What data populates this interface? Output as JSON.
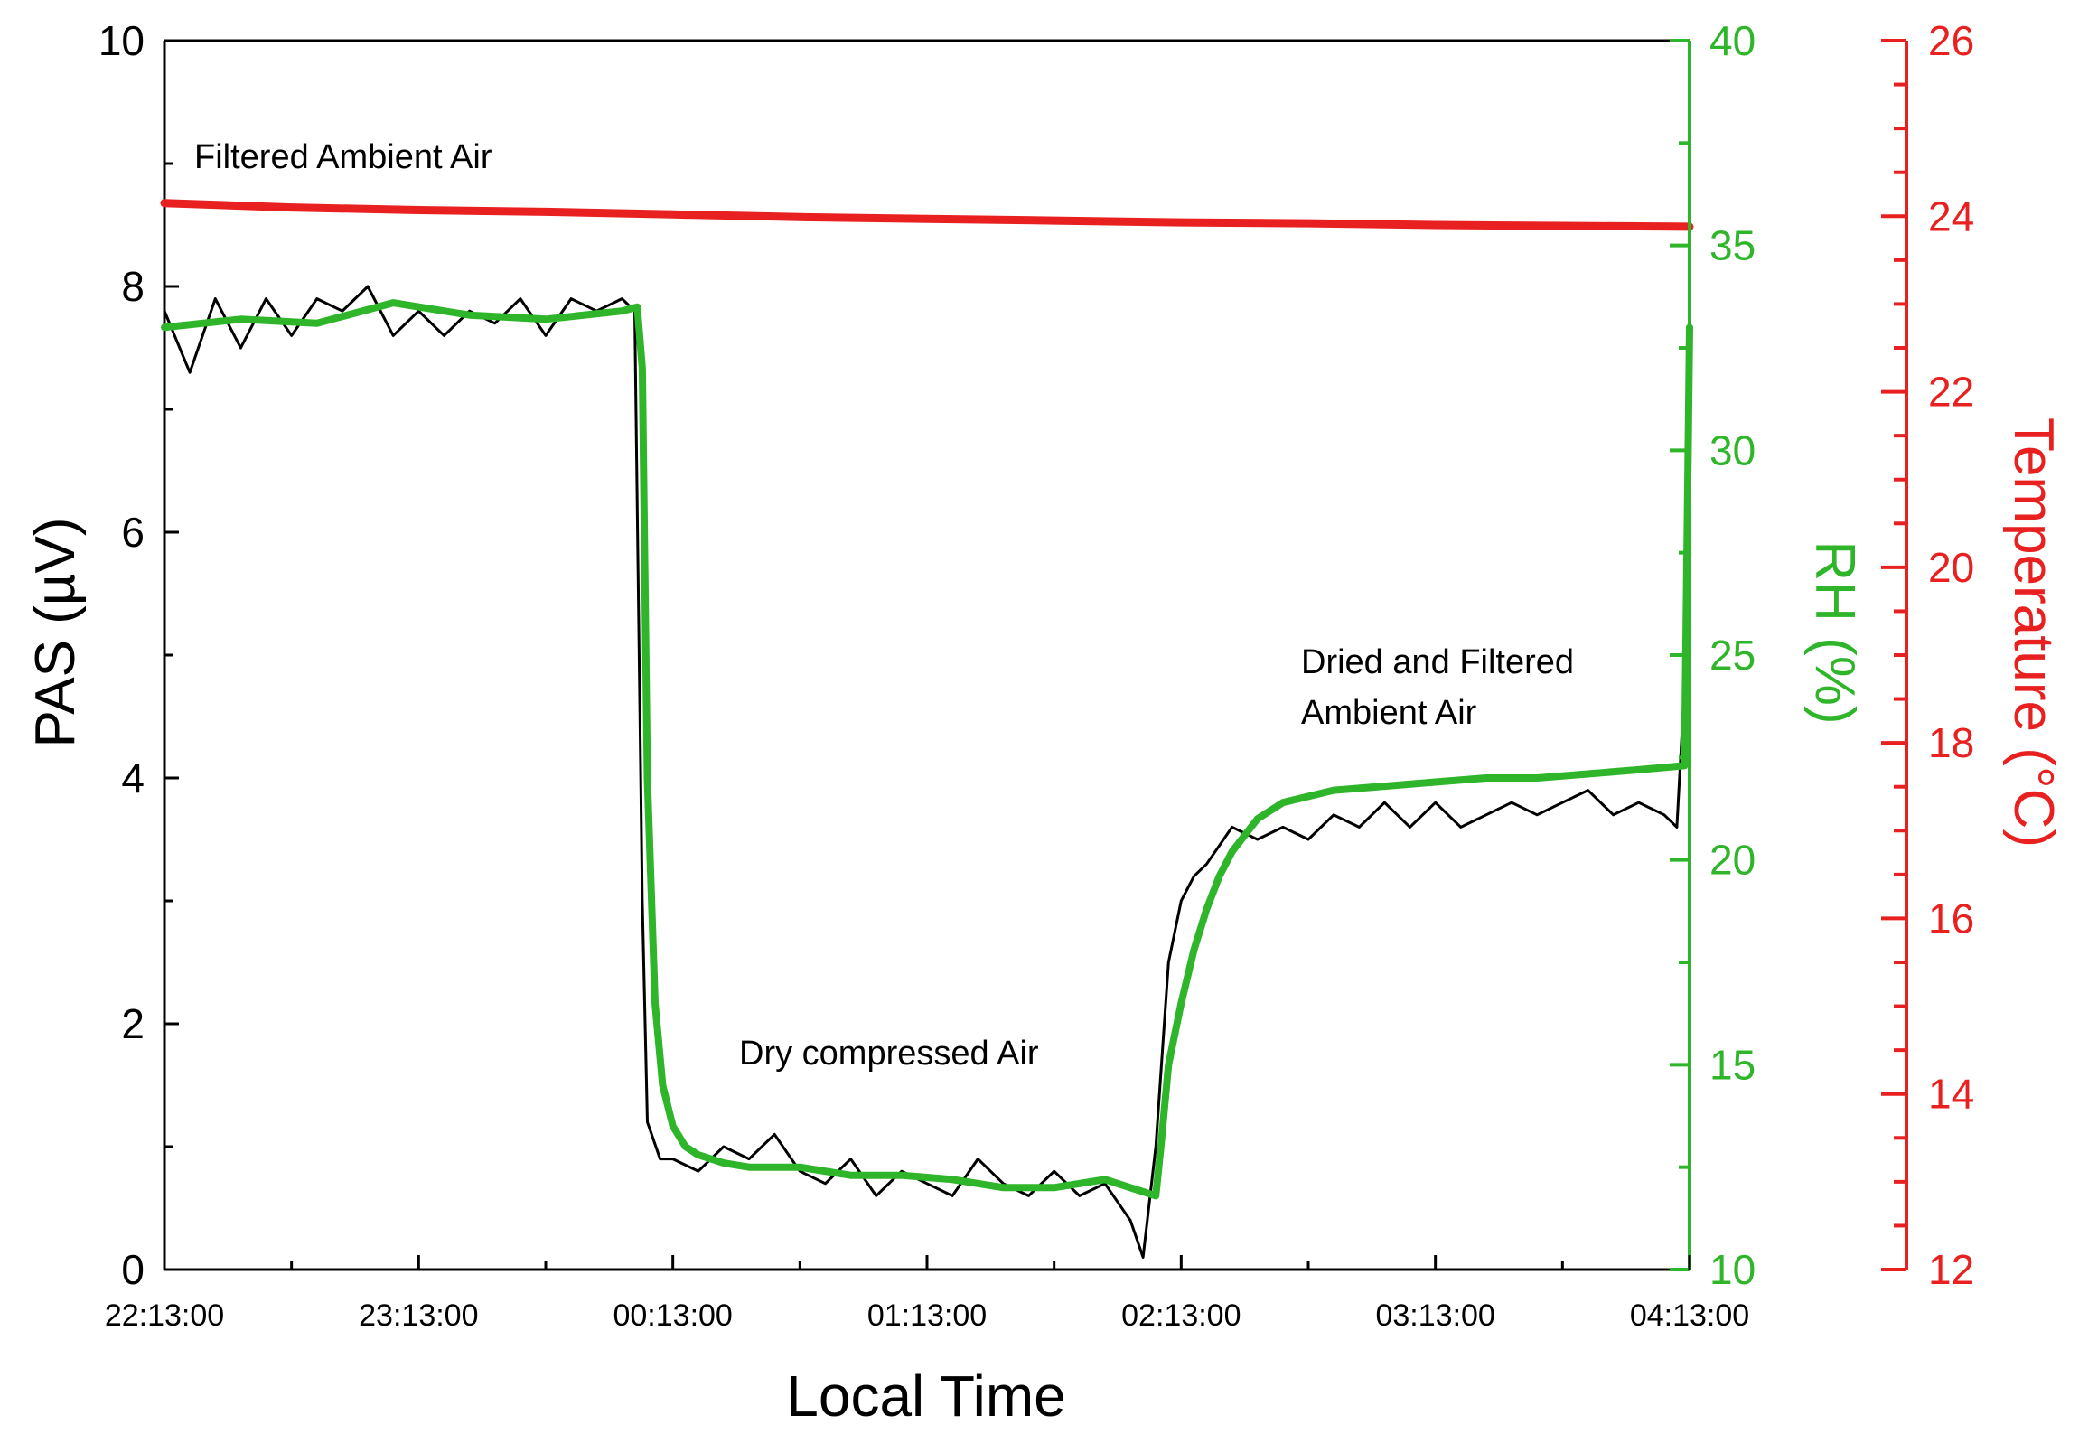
{
  "chart_data": {
    "type": "line",
    "xlabel": "Local Time",
    "x_ticks": [
      "22:13:00",
      "23:13:00",
      "00:13:00",
      "01:13:00",
      "02:13:00",
      "03:13:00",
      "04:13:00"
    ],
    "x_range_hours": [
      0,
      6
    ],
    "axes": {
      "left": {
        "label": "PAS (µV)",
        "range": [
          0,
          10
        ],
        "ticks": [
          "0",
          "2",
          "4",
          "6",
          "8",
          "10"
        ],
        "color": "#000000"
      },
      "right_rh": {
        "label": "RH (%)",
        "range": [
          10,
          40
        ],
        "ticks": [
          "10",
          "15",
          "20",
          "25",
          "30",
          "35",
          "40"
        ],
        "color": "#2fb52a"
      },
      "right_temp": {
        "label": "Temperature (°C)",
        "range": [
          12,
          26
        ],
        "ticks": [
          "12",
          "14",
          "16",
          "18",
          "20",
          "22",
          "24",
          "26"
        ],
        "color": "#e82020"
      }
    },
    "annotations": [
      "Filtered Ambient Air",
      "Dry compressed Air",
      "Dried and Filtered",
      "Ambient Air"
    ],
    "series": [
      {
        "axis": "left",
        "color": "#000000",
        "x_hours": [
          0.0,
          0.1,
          0.2,
          0.3,
          0.4,
          0.5,
          0.6,
          0.7,
          0.8,
          0.9,
          1.0,
          1.1,
          1.2,
          1.3,
          1.4,
          1.5,
          1.6,
          1.7,
          1.8,
          1.85,
          1.88,
          1.9,
          1.95,
          2.0,
          2.1,
          2.2,
          2.3,
          2.4,
          2.5,
          2.6,
          2.7,
          2.8,
          2.9,
          3.0,
          3.1,
          3.2,
          3.3,
          3.4,
          3.5,
          3.6,
          3.7,
          3.8,
          3.85,
          3.9,
          3.95,
          4.0,
          4.05,
          4.1,
          4.2,
          4.3,
          4.4,
          4.5,
          4.6,
          4.7,
          4.8,
          4.9,
          5.0,
          5.1,
          5.2,
          5.3,
          5.4,
          5.5,
          5.6,
          5.7,
          5.8,
          5.9,
          5.95,
          6.0
        ],
        "y": [
          7.8,
          7.3,
          7.9,
          7.5,
          7.9,
          7.6,
          7.9,
          7.8,
          8.0,
          7.6,
          7.8,
          7.6,
          7.8,
          7.7,
          7.9,
          7.6,
          7.9,
          7.8,
          7.9,
          7.8,
          3.0,
          1.2,
          0.9,
          0.9,
          0.8,
          1.0,
          0.9,
          1.1,
          0.8,
          0.7,
          0.9,
          0.6,
          0.8,
          0.7,
          0.6,
          0.9,
          0.7,
          0.6,
          0.8,
          0.6,
          0.7,
          0.4,
          0.1,
          1.0,
          2.5,
          3.0,
          3.2,
          3.3,
          3.6,
          3.5,
          3.6,
          3.5,
          3.7,
          3.6,
          3.8,
          3.6,
          3.8,
          3.6,
          3.7,
          3.8,
          3.7,
          3.8,
          3.9,
          3.7,
          3.8,
          3.7,
          3.6,
          5.5
        ]
      },
      {
        "axis": "right_rh",
        "color": "#2fb52a",
        "x_hours": [
          0.0,
          0.3,
          0.6,
          0.9,
          1.2,
          1.5,
          1.8,
          1.86,
          1.88,
          1.9,
          1.93,
          1.96,
          2.0,
          2.05,
          2.1,
          2.2,
          2.3,
          2.5,
          2.7,
          2.9,
          3.1,
          3.3,
          3.5,
          3.7,
          3.9,
          3.92,
          3.95,
          4.0,
          4.05,
          4.1,
          4.15,
          4.2,
          4.3,
          4.4,
          4.6,
          4.8,
          5.0,
          5.2,
          5.4,
          5.6,
          5.8,
          5.98,
          6.0
        ],
        "y": [
          33.0,
          33.2,
          33.1,
          33.6,
          33.3,
          33.2,
          33.4,
          33.5,
          32.0,
          22.0,
          16.5,
          14.5,
          13.5,
          13.0,
          12.8,
          12.6,
          12.5,
          12.5,
          12.3,
          12.3,
          12.2,
          12.0,
          12.0,
          12.2,
          11.8,
          13.0,
          15.0,
          16.5,
          17.8,
          18.8,
          19.6,
          20.2,
          21.0,
          21.4,
          21.7,
          21.8,
          21.9,
          22.0,
          22.0,
          22.1,
          22.2,
          22.3,
          33.0
        ]
      },
      {
        "axis": "right_temp",
        "color": "#e82020",
        "x_hours": [
          0.0,
          0.5,
          1.0,
          1.5,
          2.0,
          2.5,
          3.0,
          3.5,
          4.0,
          4.5,
          5.0,
          5.5,
          6.0
        ],
        "y": [
          24.15,
          24.1,
          24.07,
          24.05,
          24.02,
          23.99,
          23.97,
          23.95,
          23.93,
          23.92,
          23.9,
          23.89,
          23.88
        ]
      }
    ]
  }
}
